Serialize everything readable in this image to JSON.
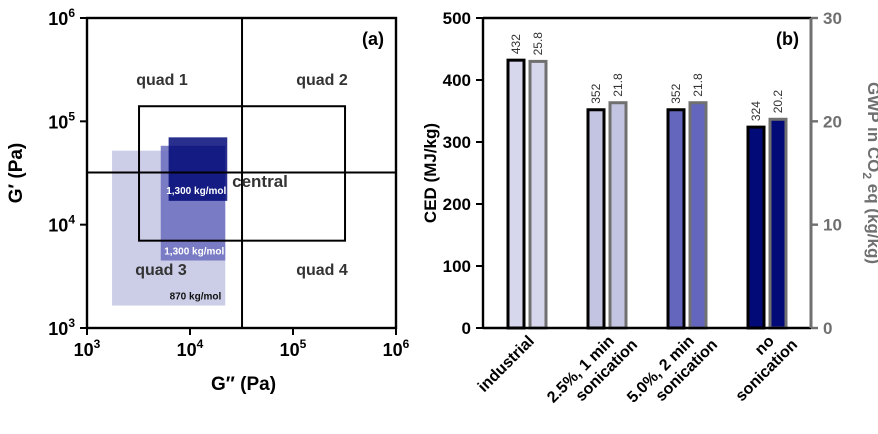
{
  "colors": {
    "quad3_870": "#c9cae6",
    "quad3_1300": "#6a6cbd",
    "dark_1300": "#020a78",
    "industrial": "#d6d7ec",
    "sonication_1min": "#c3c4e2",
    "sonication_2min": "#6466be",
    "no_sonication": "#020a78",
    "gwp_axis": "#707070"
  },
  "chart_data": [
    {
      "type": "scatter",
      "panel_label": "(a)",
      "xlabel": "G″ (Pa)",
      "ylabel": "G′ (Pa)",
      "x_scale": "log",
      "y_scale": "log",
      "xlim": [
        1000,
        1000000
      ],
      "ylim": [
        1000,
        1000000
      ],
      "x_ticks": [
        {
          "value": 1000,
          "base": "10",
          "exp": "3"
        },
        {
          "value": 10000,
          "base": "10",
          "exp": "4"
        },
        {
          "value": 100000,
          "base": "10",
          "exp": "5"
        },
        {
          "value": 1000000,
          "base": "10",
          "exp": "6"
        }
      ],
      "y_ticks": [
        {
          "value": 1000,
          "base": "10",
          "exp": "3"
        },
        {
          "value": 10000,
          "base": "10",
          "exp": "4"
        },
        {
          "value": 100000,
          "base": "10",
          "exp": "5"
        },
        {
          "value": 1000000,
          "base": "10",
          "exp": "6"
        }
      ],
      "dividers": {
        "x": 32000,
        "y": 32000
      },
      "central_window": {
        "x": [
          3200,
          320000
        ],
        "y": [
          7000,
          140000
        ],
        "label": "central"
      },
      "quadrant_labels": [
        "quad 1",
        "quad 2",
        "quad 3",
        "quad 4"
      ],
      "regions": [
        {
          "label": "870 kg/mol",
          "x": [
            1750,
            22000
          ],
          "y": [
            1650,
            52000
          ],
          "color_key": "quad3_870"
        },
        {
          "label": "1,300 kg/mol",
          "x": [
            5200,
            22000
          ],
          "y": [
            4500,
            58000
          ],
          "color_key": "quad3_1300"
        },
        {
          "label": "1,300 kg/mol",
          "x": [
            6200,
            23000
          ],
          "y": [
            17000,
            70000
          ],
          "color_key": "dark_1300"
        }
      ]
    },
    {
      "type": "bar",
      "panel_label": "(b)",
      "ylabel": "CED (MJ/kg)",
      "y2label_prefix": "GWP in CO",
      "y2label_sub": "2",
      "y2label_suffix": " eq (kg/kg)",
      "ylim": [
        0,
        500
      ],
      "y2lim": [
        0,
        30
      ],
      "y_ticks": [
        0,
        100,
        200,
        300,
        400,
        500
      ],
      "y2_ticks": [
        0,
        10,
        20,
        30
      ],
      "categories": [
        {
          "lines": [
            "industrial"
          ]
        },
        {
          "lines": [
            "2.5%, 1 min",
            "sonication"
          ]
        },
        {
          "lines": [
            "5.0%, 2 min",
            "sonication"
          ]
        },
        {
          "lines": [
            "no",
            "sonication"
          ]
        }
      ],
      "series": [
        {
          "axis": "left",
          "values": [
            432,
            352,
            352,
            324
          ],
          "labels": [
            "432",
            "352",
            "352",
            "324"
          ],
          "outline_key": "black"
        },
        {
          "axis": "right",
          "values": [
            25.8,
            21.8,
            21.8,
            20.2
          ],
          "labels": [
            "25.8",
            "21.8",
            "21.8",
            "20.2"
          ],
          "outline_key": "gwp_axis"
        }
      ],
      "fill_keys": [
        "industrial",
        "sonication_1min",
        "sonication_2min",
        "no_sonication"
      ]
    }
  ]
}
